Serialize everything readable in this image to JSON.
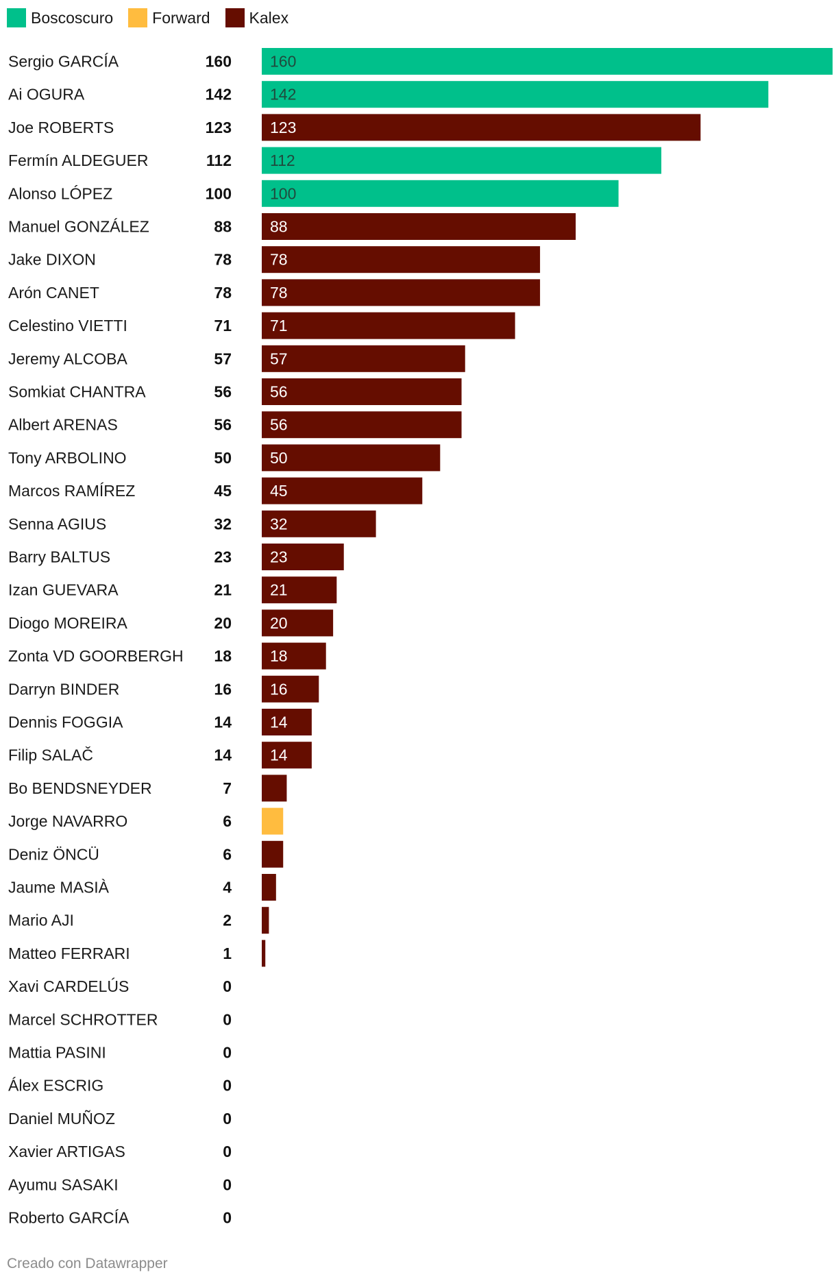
{
  "legend": [
    {
      "name": "Boscoscuro",
      "color": "#00c08b"
    },
    {
      "name": "Forward",
      "color": "#ffbc3f"
    },
    {
      "name": "Kalex",
      "color": "#650d00"
    }
  ],
  "footer": {
    "credit": "Creado con Datawrapper"
  },
  "chart_data": {
    "type": "bar",
    "orientation": "horizontal",
    "xlim": [
      0,
      160
    ],
    "grid": false,
    "legend_position": "top-left",
    "categories": [
      "Sergio GARCÍA",
      "Ai OGURA",
      "Joe ROBERTS",
      "Fermín ALDEGUER",
      "Alonso LÓPEZ",
      "Manuel GONZÁLEZ",
      "Jake DIXON",
      "Arón CANET",
      "Celestino VIETTI",
      "Jeremy ALCOBA",
      "Somkiat CHANTRA",
      "Albert ARENAS",
      "Tony ARBOLINO",
      "Marcos RAMÍREZ",
      "Senna AGIUS",
      "Barry BALTUS",
      "Izan GUEVARA",
      "Diogo MOREIRA",
      "Zonta VD GOORBERGH",
      "Darryn BINDER",
      "Dennis FOGGIA",
      "Filip SALAČ",
      "Bo BENDSNEYDER",
      "Jorge NAVARRO",
      "Deniz ÖNCÜ",
      "Jaume MASIÀ",
      "Mario AJI",
      "Matteo FERRARI",
      "Xavi CARDELÚS",
      "Marcel SCHROTTER",
      "Mattia PASINI",
      "Álex ESCRIG",
      "Daniel MUÑOZ",
      "Xavier ARTIGAS",
      "Ayumu SASAKI",
      "Roberto GARCÍA"
    ],
    "values": [
      160,
      142,
      123,
      112,
      100,
      88,
      78,
      78,
      71,
      57,
      56,
      56,
      50,
      45,
      32,
      23,
      21,
      20,
      18,
      16,
      14,
      14,
      7,
      6,
      6,
      4,
      2,
      1,
      0,
      0,
      0,
      0,
      0,
      0,
      0,
      0
    ],
    "groups": [
      "Boscoscuro",
      "Boscoscuro",
      "Kalex",
      "Boscoscuro",
      "Boscoscuro",
      "Kalex",
      "Kalex",
      "Kalex",
      "Kalex",
      "Kalex",
      "Kalex",
      "Kalex",
      "Kalex",
      "Kalex",
      "Kalex",
      "Kalex",
      "Kalex",
      "Kalex",
      "Kalex",
      "Kalex",
      "Kalex",
      "Kalex",
      "Kalex",
      "Forward",
      "Kalex",
      "Kalex",
      "Kalex",
      "Kalex",
      "Kalex",
      "Kalex",
      "Kalex",
      "Kalex",
      "Kalex",
      "Kalex",
      "Kalex",
      "Kalex"
    ]
  }
}
